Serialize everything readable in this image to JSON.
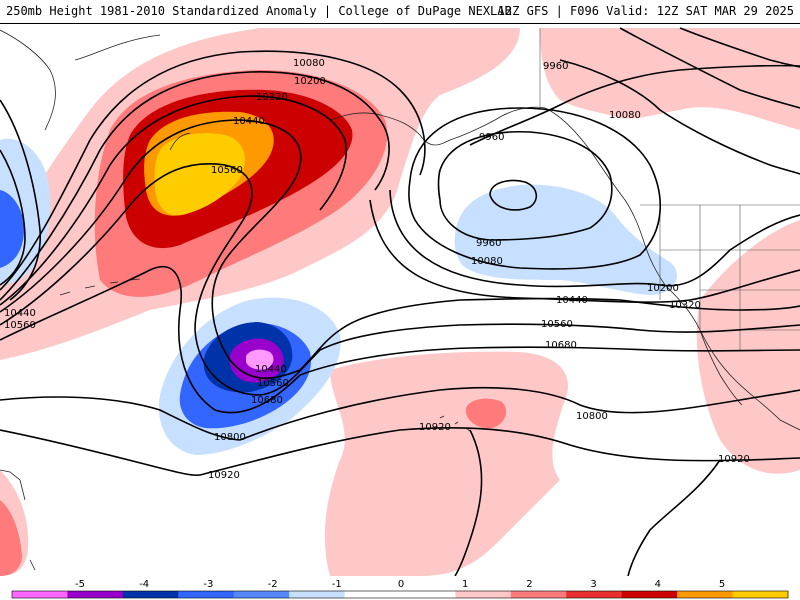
{
  "header": {
    "title_left": "250mb Height 1981-2010 Standardized Anomaly | College of DuPage NEXLAB",
    "title_right": "12Z GFS | F096 Valid: 12Z SAT MAR 29 2025"
  },
  "contour_labels": {
    "l10080_top": "10080",
    "l10200_top": "10200",
    "l10320_top": "10320",
    "l10440_top": "10440",
    "l10560_top": "10560",
    "l9960_ne": "9960",
    "l10080_ne": "10080",
    "l9960_gulf": "9960",
    "l9960_low": "9960",
    "l10080_low": "10080",
    "l10200_e": "10200",
    "l10320_e": "10320",
    "l10440_w": "10440",
    "l10560_w": "10560",
    "l10440_mid": "10440",
    "l10560_mid": "10560",
    "l10680_mid": "10680",
    "l10440_cut": "10440",
    "l10560_cut": "10560",
    "l10680_cut": "10680",
    "l10800_cut": "10800",
    "l10920_sw": "10920",
    "l10920_mid": "10920",
    "l10800_e": "10800",
    "l10920_e": "10920"
  },
  "legend": {
    "ticks": [
      "-5",
      "-4",
      "-3",
      "-2",
      "-1",
      "0",
      "1",
      "2",
      "3",
      "4",
      "5"
    ],
    "colors": [
      "#ff66ff",
      "#9900cc",
      "#0033aa",
      "#3366ff",
      "#5588ff",
      "#c8e0ff",
      "#ffffff",
      "#ffffff",
      "#ffc8c8",
      "#ff7a7a",
      "#e83030",
      "#cc0000",
      "#ff9900",
      "#ffcc00"
    ]
  },
  "colors": {
    "anom_pos1": "#ffc8c8",
    "anom_pos2": "#ff7a7a",
    "anom_pos3": "#cc0000",
    "anom_pos4": "#ff9900",
    "anom_pos5": "#ffcc00",
    "anom_neg1": "#c8e0ff",
    "anom_neg2": "#3366ff",
    "anom_neg3": "#0033aa",
    "anom_neg4": "#9900cc",
    "anom_neg5": "#ff99ff"
  }
}
